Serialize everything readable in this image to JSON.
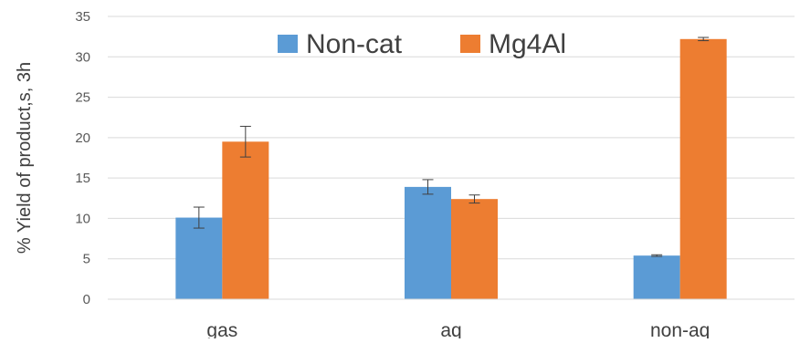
{
  "chart_data": {
    "type": "bar",
    "title": "",
    "xlabel": "",
    "ylabel": "% Yield of product,s, 3h",
    "categories": [
      "gas",
      "aq",
      "non-aq"
    ],
    "ylim": [
      0,
      35
    ],
    "yticks": [
      0,
      5,
      10,
      15,
      20,
      25,
      30,
      35
    ],
    "grid": true,
    "legend_position": "top-center",
    "series": [
      {
        "name": "Non-cat",
        "color": "#5B9BD5",
        "values": [
          10.1,
          13.9,
          5.4
        ],
        "errors": [
          1.3,
          0.9,
          0.1
        ]
      },
      {
        "name": "Mg4Al",
        "color": "#ED7D31",
        "values": [
          19.5,
          12.4,
          32.2
        ],
        "errors": [
          1.9,
          0.5,
          0.2
        ]
      }
    ]
  }
}
